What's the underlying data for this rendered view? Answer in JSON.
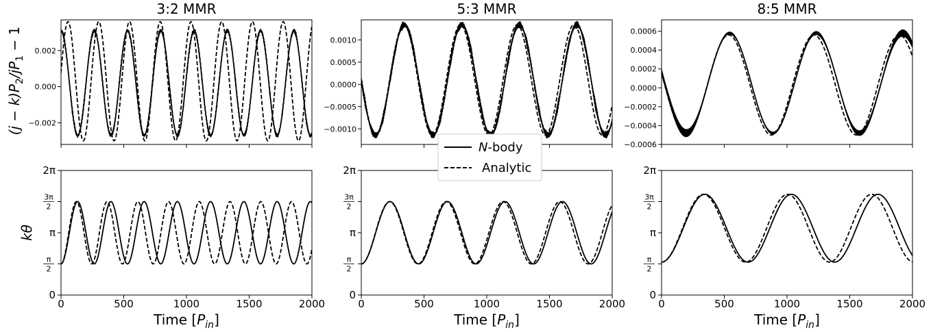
{
  "chart_data": [
    {
      "type": "line",
      "title": "3:2 MMR",
      "ylabel": "(j − k)P₂/jP₁ − 1",
      "xlim": [
        0,
        2000
      ],
      "ylim": [
        -0.0032,
        0.0037
      ],
      "xticks": [
        0,
        500,
        1000,
        1500,
        2000
      ],
      "yticks": [
        -0.002,
        0.0,
        0.002
      ],
      "ytick_labels": [
        "−0.002",
        "0.000",
        "0.002"
      ],
      "series": [
        {
          "name": "N-body",
          "style": "solid",
          "func": "sin",
          "amp": 0.0029,
          "offset": 0.0002,
          "period": 265,
          "x0": 67,
          "noise": 0.00012
        },
        {
          "name": "Analytic",
          "style": "dashed",
          "func": "sin",
          "amp": 0.0033,
          "offset": 0.0003,
          "period": 245,
          "x0": 117,
          "noise": 0
        }
      ]
    },
    {
      "type": "line",
      "title": "5:3 MMR",
      "xlim": [
        0,
        2000
      ],
      "ylim": [
        -0.00135,
        0.00145
      ],
      "xticks": [
        0,
        500,
        1000,
        1500,
        2000
      ],
      "yticks": [
        -0.001,
        -0.0005,
        0.0,
        0.0005,
        0.001
      ],
      "ytick_labels": [
        "−0.0010",
        "−0.0005",
        "0.0000",
        "0.0005",
        "0.0010"
      ],
      "series": [
        {
          "name": "N-body",
          "style": "solid",
          "func": "sin",
          "amp": 0.00124,
          "offset": 0.0001,
          "period": 458,
          "x0": 0,
          "noise": 9e-05
        },
        {
          "name": "Analytic",
          "style": "dashed",
          "func": "sin",
          "amp": 0.00124,
          "offset": 0.0001,
          "period": 452,
          "x0": 0,
          "noise": 0
        }
      ]
    },
    {
      "type": "line",
      "title": "8:5 MMR",
      "xlim": [
        0,
        2000
      ],
      "ylim": [
        -0.0006,
        0.00072
      ],
      "xticks": [
        0,
        500,
        1000,
        1500,
        2000
      ],
      "yticks": [
        -0.0006,
        -0.0004,
        -0.0002,
        0.0,
        0.0002,
        0.0004,
        0.0006
      ],
      "ytick_labels": [
        "−0.0006",
        "−0.0004",
        "−0.0002",
        "0.0000",
        "0.0002",
        "0.0004",
        "0.0006"
      ],
      "series": [
        {
          "name": "N-body",
          "style": "solid",
          "func": "sin",
          "amp": 0.00053,
          "offset": 5e-05,
          "period": 690,
          "x0": 25,
          "noise": 0,
          "band": [
            0.00012,
            3e-05,
            1000,
            3e-05,
            8e-05
          ]
        },
        {
          "name": "Analytic",
          "style": "dashed",
          "func": "sin",
          "amp": 0.00053,
          "offset": 3e-05,
          "period": 680,
          "x0": 25,
          "noise": 0
        }
      ]
    },
    {
      "type": "line",
      "ylabel": "kθ",
      "xlabel": "Time [P_in]",
      "xlim": [
        0,
        2000
      ],
      "ylim": [
        0,
        6.2832
      ],
      "xticks": [
        0,
        500,
        1000,
        1500,
        2000
      ],
      "yticks": [
        0,
        1.5708,
        3.1416,
        4.7124,
        6.2832
      ],
      "ytick_labels": [
        "0",
        "π/2",
        "π",
        "3π/2",
        "2π"
      ],
      "series": [
        {
          "name": "N-body",
          "style": "solid",
          "func": "cos",
          "amp": 1.5708,
          "offset": 3.1416,
          "period": 265,
          "x0": 0
        },
        {
          "name": "Analytic",
          "style": "dashed",
          "func": "cos",
          "amp": 1.5708,
          "offset": 3.1416,
          "period": 245,
          "x0": 0
        }
      ]
    },
    {
      "type": "line",
      "xlabel": "Time [P_in]",
      "xlim": [
        0,
        2000
      ],
      "ylim": [
        0,
        6.2832
      ],
      "xticks": [
        0,
        500,
        1000,
        1500,
        2000
      ],
      "yticks": [
        0,
        1.5708,
        3.1416,
        4.7124,
        6.2832
      ],
      "ytick_labels": [
        "0",
        "π/2",
        "π",
        "3π/2",
        "2π"
      ],
      "series": [
        {
          "name": "N-body",
          "style": "solid",
          "func": "cos",
          "amp": 1.5708,
          "offset": 3.1416,
          "period": 458,
          "x0": 0
        },
        {
          "name": "Analytic",
          "style": "dashed",
          "func": "cos",
          "amp": 1.5708,
          "offset": 3.1416,
          "period": 452,
          "x0": 0
        }
      ]
    },
    {
      "type": "line",
      "xlabel": "Time [P_in]",
      "xlim": [
        0,
        2000
      ],
      "ylim": [
        0,
        6.2832
      ],
      "xticks": [
        0,
        500,
        1000,
        1500,
        2000
      ],
      "yticks": [
        0,
        1.5708,
        3.1416,
        4.7124,
        6.2832
      ],
      "ytick_labels": [
        "0",
        "π/2",
        "π",
        "3π/2",
        "2π"
      ],
      "series": [
        {
          "name": "N-body",
          "style": "solid",
          "func": "cos",
          "amp": 1.71,
          "offset": 3.37,
          "period": 690,
          "x0": 0
        },
        {
          "name": "Analytic",
          "style": "dashed",
          "func": "cos",
          "amp": 1.71,
          "offset": 3.37,
          "period": 670,
          "x0": 0
        }
      ]
    }
  ],
  "legend": {
    "items": [
      {
        "label": "N-body",
        "style": "solid"
      },
      {
        "label": "Analytic",
        "style": "dashed"
      }
    ]
  }
}
